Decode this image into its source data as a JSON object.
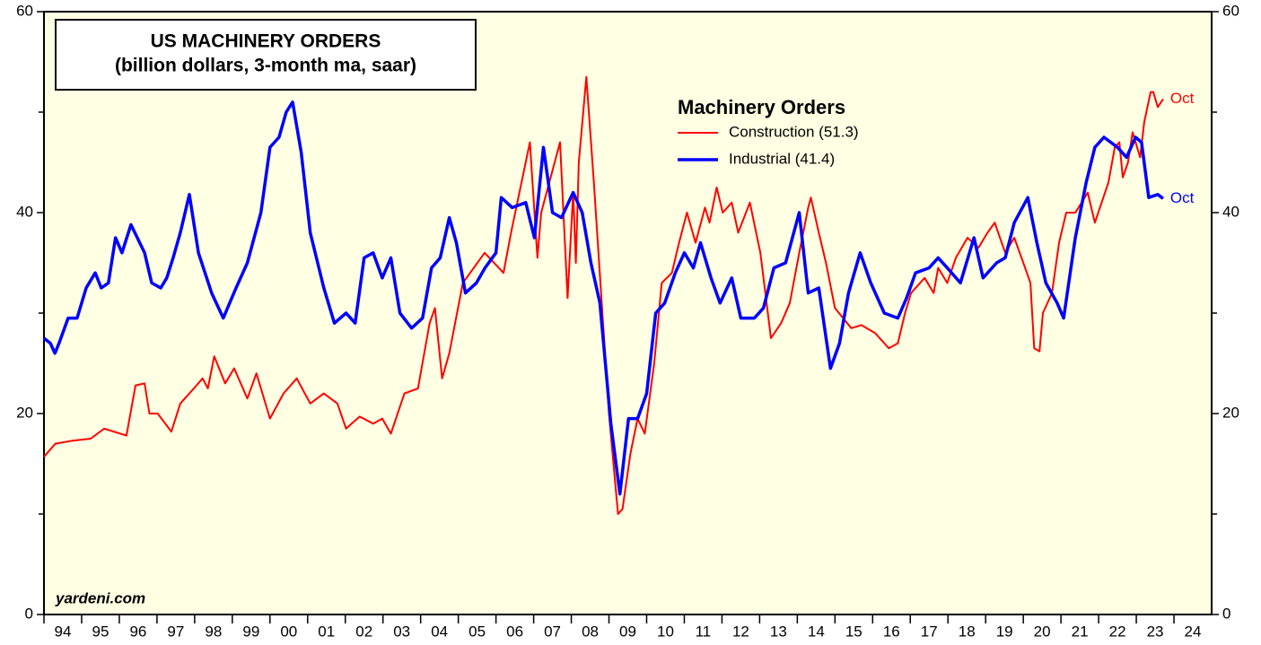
{
  "chart_data": {
    "type": "line",
    "title": "US MACHINERY ORDERS",
    "subtitle": "(billion dollars, 3-month ma, saar)",
    "legend_title": "Machinery Orders",
    "source": "yardeni.com",
    "xlim": [
      1994,
      2025
    ],
    "xticks": [
      {
        "value": 1994,
        "label": "94"
      },
      {
        "value": 1995,
        "label": "95"
      },
      {
        "value": 1996,
        "label": "96"
      },
      {
        "value": 1997,
        "label": "97"
      },
      {
        "value": 1998,
        "label": "98"
      },
      {
        "value": 1999,
        "label": "99"
      },
      {
        "value": 2000,
        "label": "00"
      },
      {
        "value": 2001,
        "label": "01"
      },
      {
        "value": 2002,
        "label": "02"
      },
      {
        "value": 2003,
        "label": "03"
      },
      {
        "value": 2004,
        "label": "04"
      },
      {
        "value": 2005,
        "label": "05"
      },
      {
        "value": 2006,
        "label": "06"
      },
      {
        "value": 2007,
        "label": "07"
      },
      {
        "value": 2008,
        "label": "08"
      },
      {
        "value": 2009,
        "label": "09"
      },
      {
        "value": 2010,
        "label": "10"
      },
      {
        "value": 2011,
        "label": "11"
      },
      {
        "value": 2012,
        "label": "12"
      },
      {
        "value": 2013,
        "label": "13"
      },
      {
        "value": 2014,
        "label": "14"
      },
      {
        "value": 2015,
        "label": "15"
      },
      {
        "value": 2016,
        "label": "16"
      },
      {
        "value": 2017,
        "label": "17"
      },
      {
        "value": 2018,
        "label": "18"
      },
      {
        "value": 2019,
        "label": "19"
      },
      {
        "value": 2020,
        "label": "20"
      },
      {
        "value": 2021,
        "label": "21"
      },
      {
        "value": 2022,
        "label": "22"
      },
      {
        "value": 2023,
        "label": "23"
      },
      {
        "value": 2024,
        "label": "24"
      }
    ],
    "ylim": [
      0,
      60
    ],
    "yticks": [
      0,
      20,
      40,
      60
    ],
    "yticks_minor": [
      10,
      30,
      50
    ],
    "y2lim": [
      0,
      60
    ],
    "y2ticks": [
      0,
      20,
      40,
      60
    ],
    "series": [
      {
        "name": "Construction (51.3)",
        "color": "#ff0000",
        "end_label": "Oct",
        "x": [
          1994.0,
          1994.3,
          1994.76,
          1995.24,
          1995.6,
          1996.19,
          1996.43,
          1996.67,
          1996.8,
          1997.02,
          1997.38,
          1997.62,
          1997.98,
          1998.21,
          1998.35,
          1998.52,
          1998.81,
          1999.05,
          1999.4,
          1999.64,
          2000.0,
          2000.36,
          2000.71,
          2001.07,
          2001.43,
          2001.79,
          2002.02,
          2002.38,
          2002.74,
          2002.98,
          2003.21,
          2003.57,
          2003.93,
          2004.24,
          2004.38,
          2004.57,
          2004.76,
          2005.12,
          2005.7,
          2006.2,
          2006.4,
          2006.9,
          2007.1,
          2007.2,
          2007.7,
          2007.9,
          2008.05,
          2008.12,
          2008.2,
          2008.4,
          2008.6,
          2008.72,
          2009.0,
          2009.24,
          2009.36,
          2009.57,
          2009.76,
          2009.95,
          2010.2,
          2010.4,
          2010.67,
          2010.86,
          2011.07,
          2011.3,
          2011.55,
          2011.67,
          2011.86,
          2012.02,
          2012.26,
          2012.43,
          2012.74,
          2013.02,
          2013.3,
          2013.57,
          2013.8,
          2014.05,
          2014.29,
          2014.36,
          2014.57,
          2014.76,
          2015.0,
          2015.43,
          2015.7,
          2016.07,
          2016.43,
          2016.67,
          2016.86,
          2017.02,
          2017.38,
          2017.62,
          2017.74,
          2017.98,
          2018.21,
          2018.52,
          2018.81,
          2019.05,
          2019.24,
          2019.52,
          2019.76,
          2020.0,
          2020.19,
          2020.29,
          2020.43,
          2020.52,
          2020.76,
          2020.95,
          2021.14,
          2021.38,
          2021.55,
          2021.71,
          2021.9,
          2022.26,
          2022.43,
          2022.55,
          2022.64,
          2022.78,
          2022.9,
          2023.1,
          2023.21,
          2023.38,
          2023.45,
          2023.57,
          2023.71
        ],
        "values": [
          15.7,
          17.0,
          17.3,
          17.5,
          18.5,
          17.8,
          22.8,
          23.0,
          20.0,
          20.0,
          18.2,
          21.0,
          22.5,
          23.5,
          22.5,
          25.7,
          23.0,
          24.5,
          21.5,
          24.0,
          19.5,
          22.0,
          23.5,
          21.0,
          22.0,
          21.0,
          18.5,
          19.7,
          19.0,
          19.5,
          18.0,
          22.0,
          22.5,
          29.0,
          30.5,
          23.5,
          26.0,
          33.0,
          36.0,
          34.0,
          38.0,
          47.0,
          35.5,
          40.0,
          47.0,
          31.5,
          42.0,
          35.0,
          45.0,
          53.5,
          43.0,
          36.0,
          20.0,
          10.0,
          10.5,
          16.0,
          19.5,
          18.0,
          25.0,
          33.0,
          34.0,
          37.0,
          40.0,
          37.0,
          40.5,
          39.0,
          42.5,
          40.0,
          41.0,
          38.0,
          41.0,
          36.0,
          27.5,
          29.0,
          31.0,
          36.0,
          40.5,
          41.5,
          38.0,
          35.0,
          30.5,
          28.5,
          28.8,
          28.0,
          26.5,
          27.0,
          30.0,
          32.0,
          33.5,
          32.0,
          34.5,
          33.0,
          35.5,
          37.5,
          36.5,
          38.0,
          39.0,
          36.0,
          37.5,
          35.0,
          33.0,
          26.5,
          26.2,
          30.0,
          32.0,
          37.0,
          40.0,
          40.0,
          41.0,
          42.0,
          39.0,
          43.0,
          46.5,
          47.0,
          43.5,
          45.0,
          48.0,
          45.5,
          49.0,
          52.0,
          52.0,
          50.5,
          51.3
        ]
      },
      {
        "name": "Industrial (41.4)",
        "color": "#0000ff",
        "end_label": "Oct",
        "x": [
          1994.0,
          1994.17,
          1994.29,
          1994.4,
          1994.64,
          1994.88,
          1995.12,
          1995.36,
          1995.52,
          1995.71,
          1995.9,
          1996.07,
          1996.31,
          1996.67,
          1996.86,
          1997.1,
          1997.26,
          1997.43,
          1997.62,
          1997.86,
          1998.1,
          1998.45,
          1998.76,
          1999.1,
          1999.4,
          1999.76,
          2000.0,
          2000.24,
          2000.43,
          2000.6,
          2000.83,
          2001.07,
          2001.43,
          2001.71,
          2002.02,
          2002.26,
          2002.5,
          2002.74,
          2002.98,
          2003.21,
          2003.45,
          2003.76,
          2004.05,
          2004.29,
          2004.52,
          2004.76,
          2004.95,
          2005.19,
          2005.48,
          2005.71,
          2006.0,
          2006.14,
          2006.43,
          2006.79,
          2007.02,
          2007.26,
          2007.5,
          2007.74,
          2008.05,
          2008.29,
          2008.52,
          2008.76,
          2009.05,
          2009.29,
          2009.52,
          2009.76,
          2010.0,
          2010.24,
          2010.48,
          2010.76,
          2011.0,
          2011.24,
          2011.43,
          2011.71,
          2011.95,
          2012.26,
          2012.5,
          2012.86,
          2013.1,
          2013.38,
          2013.69,
          2014.05,
          2014.29,
          2014.57,
          2014.88,
          2015.12,
          2015.36,
          2015.67,
          2015.95,
          2016.31,
          2016.67,
          2016.9,
          2017.14,
          2017.5,
          2017.74,
          2017.98,
          2018.33,
          2018.69,
          2018.93,
          2019.29,
          2019.52,
          2019.76,
          2020.12,
          2020.36,
          2020.6,
          2020.9,
          2021.07,
          2021.38,
          2021.67,
          2021.9,
          2022.14,
          2022.5,
          2022.74,
          2022.98,
          2023.14,
          2023.33,
          2023.57,
          2023.71
        ],
        "values": [
          27.5,
          27.0,
          26.0,
          27.0,
          29.5,
          29.5,
          32.5,
          34.0,
          32.5,
          33.0,
          37.5,
          36.0,
          38.8,
          36.0,
          33.0,
          32.5,
          33.5,
          35.5,
          38.0,
          41.8,
          36.0,
          32.0,
          29.5,
          32.5,
          35.0,
          40.0,
          46.5,
          47.5,
          50.0,
          51.0,
          46.0,
          38.0,
          32.5,
          29.0,
          30.0,
          29.0,
          35.5,
          36.0,
          33.5,
          35.5,
          30.0,
          28.5,
          29.5,
          34.5,
          35.5,
          39.5,
          37.0,
          32.0,
          33.0,
          34.5,
          36.0,
          41.5,
          40.5,
          41.0,
          37.5,
          46.5,
          40.0,
          39.5,
          42.0,
          40.0,
          35.0,
          31.0,
          19.0,
          12.0,
          19.5,
          19.5,
          22.0,
          30.0,
          31.0,
          34.0,
          36.0,
          34.5,
          37.0,
          33.5,
          31.0,
          33.5,
          29.5,
          29.5,
          30.5,
          34.5,
          35.0,
          40.0,
          32.0,
          32.5,
          24.5,
          27.0,
          32.0,
          36.0,
          33.0,
          30.0,
          29.5,
          31.5,
          34.0,
          34.5,
          35.5,
          34.5,
          33.0,
          37.5,
          33.5,
          35.0,
          35.5,
          39.0,
          41.5,
          37.0,
          33.0,
          31.0,
          29.5,
          37.5,
          43.0,
          46.5,
          47.5,
          46.5,
          45.5,
          47.5,
          47.0,
          41.5,
          41.8,
          41.4
        ]
      }
    ]
  }
}
